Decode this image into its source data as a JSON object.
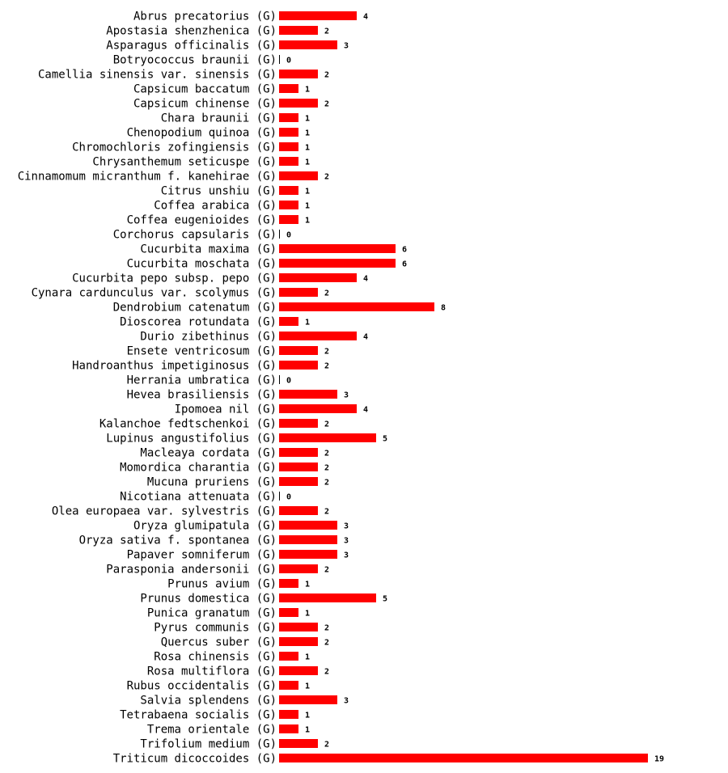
{
  "chart_data": {
    "type": "bar",
    "orientation": "horizontal",
    "bar_color": "#ff0000",
    "suffix": "(G)",
    "categories": [
      "Abrus precatorius",
      "Apostasia shenzhenica",
      "Asparagus officinalis",
      "Botryococcus braunii",
      "Camellia sinensis var. sinensis",
      "Capsicum baccatum",
      "Capsicum chinense",
      "Chara braunii",
      "Chenopodium quinoa",
      "Chromochloris zofingiensis",
      "Chrysanthemum seticuspe",
      "Cinnamomum micranthum f. kanehirae",
      "Citrus unshiu",
      "Coffea arabica",
      "Coffea eugenioides",
      "Corchorus capsularis",
      "Cucurbita maxima",
      "Cucurbita moschata",
      "Cucurbita pepo subsp. pepo",
      "Cynara cardunculus var. scolymus",
      "Dendrobium catenatum",
      "Dioscorea rotundata",
      "Durio zibethinus",
      "Ensete ventricosum",
      "Handroanthus impetiginosus",
      "Herrania umbratica",
      "Hevea brasiliensis",
      "Ipomoea nil",
      "Kalanchoe fedtschenkoi",
      "Lupinus angustifolius",
      "Macleaya cordata",
      "Momordica charantia",
      "Mucuna pruriens",
      "Nicotiana attenuata",
      "Olea europaea var. sylvestris",
      "Oryza glumipatula",
      "Oryza sativa f. spontanea",
      "Papaver somniferum",
      "Parasponia andersonii",
      "Prunus avium",
      "Prunus domestica",
      "Punica granatum",
      "Pyrus communis",
      "Quercus suber",
      "Rosa chinensis",
      "Rosa multiflora",
      "Rubus occidentalis",
      "Salvia splendens",
      "Tetrabaena socialis",
      "Trema orientale",
      "Trifolium medium",
      "Triticum dicoccoides"
    ],
    "values": [
      4,
      2,
      3,
      0,
      2,
      1,
      2,
      1,
      1,
      1,
      1,
      2,
      1,
      1,
      1,
      0,
      6,
      6,
      4,
      2,
      8,
      1,
      4,
      2,
      2,
      0,
      3,
      4,
      2,
      5,
      2,
      2,
      2,
      0,
      2,
      3,
      3,
      3,
      2,
      1,
      5,
      1,
      2,
      2,
      1,
      2,
      1,
      3,
      1,
      1,
      2,
      19
    ],
    "xlim": [
      0,
      19
    ],
    "grid": false,
    "legend": "none",
    "title": "",
    "xlabel": "",
    "ylabel": ""
  }
}
